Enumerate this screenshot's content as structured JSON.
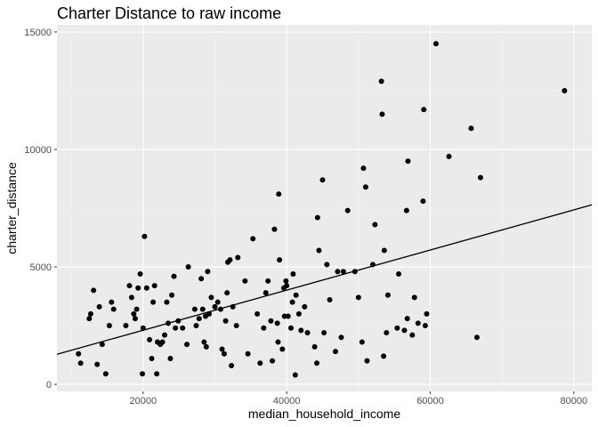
{
  "chart_data": {
    "type": "scatter",
    "title": "Charter Distance to raw income",
    "xlabel": "median_household_income",
    "ylabel": "charter_distance",
    "xlim": [
      8000,
      82500
    ],
    "ylim": [
      -300,
      15300
    ],
    "x_ticks": [
      20000,
      40000,
      60000,
      80000
    ],
    "y_ticks": [
      0,
      5000,
      10000,
      15000
    ],
    "x_tick_labels": [
      "20000",
      "40000",
      "60000",
      "80000"
    ],
    "y_tick_labels": [
      "0",
      "5000",
      "10000",
      "15000"
    ],
    "grid": true,
    "legend": "none",
    "colors": {
      "panel": "#ebebeb",
      "grid_major": "#ffffff",
      "grid_minor": "#f5f5f5",
      "points": "#000000",
      "line": "#000000"
    },
    "regression_line": {
      "x": [
        8000,
        82500
      ],
      "y": [
        1280,
        7640
      ]
    },
    "points": [
      [
        11000,
        1300
      ],
      [
        11300,
        900
      ],
      [
        12500,
        2800
      ],
      [
        12700,
        3000
      ],
      [
        13100,
        4000
      ],
      [
        13600,
        850
      ],
      [
        13900,
        3300
      ],
      [
        14300,
        1700
      ],
      [
        14800,
        450
      ],
      [
        15300,
        2500
      ],
      [
        15600,
        3500
      ],
      [
        15900,
        3200
      ],
      [
        17600,
        2500
      ],
      [
        18100,
        4200
      ],
      [
        18400,
        3700
      ],
      [
        18700,
        3000
      ],
      [
        18900,
        2800
      ],
      [
        19100,
        3200
      ],
      [
        19300,
        4100
      ],
      [
        19600,
        4700
      ],
      [
        19900,
        450
      ],
      [
        20000,
        2400
      ],
      [
        20200,
        6300
      ],
      [
        20500,
        4100
      ],
      [
        20900,
        1900
      ],
      [
        21200,
        1100
      ],
      [
        21400,
        3500
      ],
      [
        21600,
        4200
      ],
      [
        21900,
        450
      ],
      [
        22000,
        1800
      ],
      [
        22400,
        1700
      ],
      [
        22700,
        1800
      ],
      [
        23000,
        2100
      ],
      [
        23300,
        3500
      ],
      [
        23500,
        2600
      ],
      [
        23800,
        1100
      ],
      [
        24000,
        3800
      ],
      [
        24300,
        4600
      ],
      [
        24500,
        2400
      ],
      [
        24900,
        2700
      ],
      [
        25500,
        2400
      ],
      [
        26100,
        1700
      ],
      [
        26300,
        5000
      ],
      [
        27200,
        3200
      ],
      [
        27400,
        2500
      ],
      [
        27800,
        2800
      ],
      [
        28100,
        4500
      ],
      [
        28300,
        3200
      ],
      [
        28500,
        1800
      ],
      [
        28700,
        2900
      ],
      [
        28800,
        1600
      ],
      [
        29000,
        4800
      ],
      [
        29200,
        3000
      ],
      [
        29500,
        3700
      ],
      [
        30000,
        3300
      ],
      [
        30400,
        3500
      ],
      [
        30800,
        3200
      ],
      [
        31000,
        1500
      ],
      [
        31300,
        1300
      ],
      [
        31500,
        2700
      ],
      [
        31700,
        3900
      ],
      [
        31800,
        5200
      ],
      [
        32100,
        5300
      ],
      [
        32300,
        800
      ],
      [
        32500,
        3300
      ],
      [
        33000,
        2500
      ],
      [
        33200,
        5400
      ],
      [
        34200,
        4400
      ],
      [
        34600,
        1300
      ],
      [
        35300,
        6200
      ],
      [
        35900,
        3000
      ],
      [
        36300,
        900
      ],
      [
        36800,
        2400
      ],
      [
        37100,
        3900
      ],
      [
        37400,
        4400
      ],
      [
        37800,
        2700
      ],
      [
        38000,
        1000
      ],
      [
        38300,
        6600
      ],
      [
        38700,
        2600
      ],
      [
        38800,
        1800
      ],
      [
        38900,
        8100
      ],
      [
        39000,
        5300
      ],
      [
        39400,
        1500
      ],
      [
        39600,
        4100
      ],
      [
        39700,
        2900
      ],
      [
        39900,
        4400
      ],
      [
        40000,
        4200
      ],
      [
        40200,
        2900
      ],
      [
        40600,
        2400
      ],
      [
        40800,
        3500
      ],
      [
        40900,
        4700
      ],
      [
        41200,
        400
      ],
      [
        41300,
        3800
      ],
      [
        41700,
        3000
      ],
      [
        42000,
        2300
      ],
      [
        42500,
        3300
      ],
      [
        42900,
        2200
      ],
      [
        43900,
        1600
      ],
      [
        44200,
        900
      ],
      [
        44300,
        7100
      ],
      [
        44500,
        5700
      ],
      [
        45000,
        8700
      ],
      [
        45200,
        2200
      ],
      [
        45600,
        5100
      ],
      [
        46000,
        3600
      ],
      [
        46800,
        1400
      ],
      [
        47100,
        4800
      ],
      [
        47600,
        2000
      ],
      [
        47900,
        4800
      ],
      [
        48500,
        7400
      ],
      [
        49500,
        4800
      ],
      [
        50000,
        3700
      ],
      [
        50500,
        1800
      ],
      [
        50700,
        9200
      ],
      [
        51000,
        8400
      ],
      [
        51200,
        1000
      ],
      [
        52000,
        5100
      ],
      [
        52300,
        6800
      ],
      [
        53200,
        12900
      ],
      [
        53300,
        11500
      ],
      [
        53500,
        1200
      ],
      [
        53600,
        5700
      ],
      [
        53900,
        2200
      ],
      [
        54100,
        3800
      ],
      [
        55400,
        2400
      ],
      [
        55600,
        4700
      ],
      [
        56400,
        2300
      ],
      [
        56700,
        7400
      ],
      [
        56800,
        2800
      ],
      [
        56900,
        9500
      ],
      [
        57500,
        2100
      ],
      [
        57800,
        3700
      ],
      [
        58300,
        2600
      ],
      [
        59000,
        7800
      ],
      [
        59100,
        11700
      ],
      [
        59300,
        2500
      ],
      [
        59500,
        3000
      ],
      [
        60800,
        14500
      ],
      [
        62600,
        9700
      ],
      [
        65700,
        10900
      ],
      [
        66500,
        2000
      ],
      [
        67000,
        8800
      ],
      [
        78700,
        12500
      ]
    ]
  }
}
